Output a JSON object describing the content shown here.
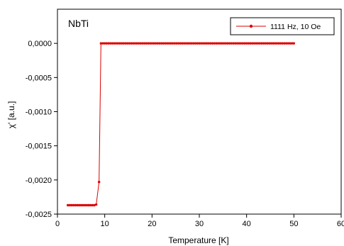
{
  "chart_data": {
    "type": "line",
    "title": "",
    "annotation": "NbTi",
    "xlabel": "Temperature [K]",
    "ylabel": "χ' [a.u.]",
    "xlim": [
      0,
      60
    ],
    "ylim": [
      -0.0025,
      0.0005
    ],
    "xticks": [
      0,
      10,
      20,
      30,
      40,
      50,
      60
    ],
    "xtick_labels": [
      "0",
      "10",
      "20",
      "30",
      "40",
      "50",
      "60"
    ],
    "yticks": [
      -0.0025,
      -0.002,
      -0.0015,
      -0.001,
      -0.0005,
      0.0
    ],
    "ytick_labels": [
      "-0,0025",
      "-0,0020",
      "-0,0015",
      "-0,0010",
      "-0,0005",
      "0,0000"
    ],
    "grid": false,
    "legend_position": "top-right",
    "colors": {
      "series": "#dd0000",
      "axis": "#000000",
      "background": "#ffffff"
    },
    "series": [
      {
        "name": "1111 Hz, 10 Oe",
        "marker": "circle",
        "x": [
          2.2,
          2.6,
          3.0,
          3.4,
          3.8,
          4.2,
          4.6,
          5.0,
          5.4,
          5.8,
          6.2,
          6.6,
          7.0,
          7.4,
          7.8,
          8.2,
          8.8,
          9.2,
          9.6,
          10.0,
          10.4,
          10.8,
          11.2,
          11.6,
          12.0,
          12.4,
          12.8,
          13.2,
          13.6,
          14.0,
          14.4,
          14.8,
          15.2,
          15.6,
          16.0,
          16.4,
          16.8,
          17.2,
          17.6,
          18.0,
          18.4,
          18.8,
          19.2,
          19.6,
          20.0,
          20.4,
          20.8,
          21.2,
          21.6,
          22.0,
          22.4,
          22.8,
          23.2,
          23.6,
          24.0,
          24.4,
          24.8,
          25.2,
          25.6,
          26.0,
          26.4,
          26.8,
          27.2,
          27.6,
          28.0,
          28.4,
          28.8,
          29.2,
          29.6,
          30.0,
          30.4,
          30.8,
          31.2,
          31.6,
          32.0,
          32.4,
          32.8,
          33.2,
          33.6,
          34.0,
          34.4,
          34.8,
          35.2,
          35.6,
          36.0,
          36.4,
          36.8,
          37.2,
          37.6,
          38.0,
          38.4,
          38.8,
          39.2,
          39.6,
          40.0,
          40.4,
          40.8,
          41.2,
          41.6,
          42.0,
          42.4,
          42.8,
          43.2,
          43.6,
          44.0,
          44.4,
          44.8,
          45.2,
          45.6,
          46.0,
          46.4,
          46.8,
          47.2,
          47.6,
          48.0,
          48.4,
          48.8,
          49.2,
          49.6,
          50.0
        ],
        "y": [
          -0.00237,
          -0.00237,
          -0.00237,
          -0.00237,
          -0.00237,
          -0.00237,
          -0.00237,
          -0.00237,
          -0.00237,
          -0.00237,
          -0.00237,
          -0.00237,
          -0.00237,
          -0.00237,
          -0.00237,
          -0.00236,
          -0.00203,
          0.0,
          0.0,
          0.0,
          0.0,
          0.0,
          0.0,
          0.0,
          0.0,
          0.0,
          0.0,
          0.0,
          0.0,
          0.0,
          0.0,
          0.0,
          0.0,
          0.0,
          0.0,
          0.0,
          0.0,
          0.0,
          0.0,
          0.0,
          0.0,
          0.0,
          0.0,
          0.0,
          0.0,
          0.0,
          0.0,
          0.0,
          0.0,
          0.0,
          0.0,
          0.0,
          0.0,
          0.0,
          0.0,
          0.0,
          0.0,
          0.0,
          0.0,
          0.0,
          0.0,
          0.0,
          0.0,
          0.0,
          0.0,
          0.0,
          0.0,
          0.0,
          0.0,
          0.0,
          0.0,
          0.0,
          0.0,
          0.0,
          0.0,
          0.0,
          0.0,
          0.0,
          0.0,
          0.0,
          0.0,
          0.0,
          0.0,
          0.0,
          0.0,
          0.0,
          0.0,
          0.0,
          0.0,
          0.0,
          0.0,
          0.0,
          0.0,
          0.0,
          0.0,
          0.0,
          0.0,
          0.0,
          0.0,
          0.0,
          0.0,
          0.0,
          0.0,
          0.0,
          0.0,
          0.0,
          0.0,
          0.0,
          0.0,
          0.0,
          0.0,
          0.0,
          0.0,
          0.0,
          0.0,
          0.0,
          0.0,
          0.0,
          0.0,
          0.0
        ]
      }
    ]
  }
}
